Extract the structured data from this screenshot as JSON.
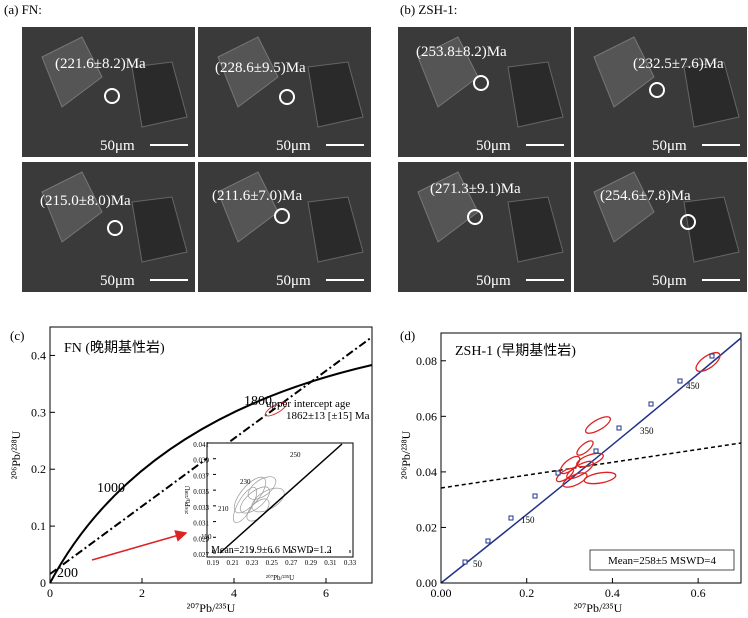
{
  "panel_a": {
    "label": "(a) FN:",
    "images": [
      {
        "age": "(221.6±8.2)Ma",
        "scale": "50μm"
      },
      {
        "age": "(228.6±9.5)Ma",
        "scale": "50μm"
      },
      {
        "age": "(215.0±8.0)Ma",
        "scale": "50μm"
      },
      {
        "age": "(211.6±7.0)Ma",
        "scale": "50μm"
      }
    ]
  },
  "panel_b": {
    "label": "(b) ZSH-1:",
    "images": [
      {
        "age": "(253.8±8.2)Ma",
        "scale": "50μm"
      },
      {
        "age": "(232.5±7.6)Ma",
        "scale": "50μm"
      },
      {
        "age": "(271.3±9.1)Ma",
        "scale": "50μm"
      },
      {
        "age": "(254.6±7.8)Ma",
        "scale": "50μm"
      }
    ]
  },
  "panel_c": {
    "label": "(c)",
    "title": "FN (晚期基性岩)",
    "xlabel": "²⁰⁷Pb/²³⁵U",
    "ylabel": "²⁰⁶Pb/²³⁸U",
    "xlim": [
      0,
      7
    ],
    "xticks": [
      0,
      2,
      4,
      6
    ],
    "ylim": [
      0,
      0.45
    ],
    "yticks": [
      0,
      0.1,
      0.2,
      0.3,
      0.4
    ],
    "curve_labels": [
      "1000",
      "1800",
      "200"
    ],
    "annotation": "upper intercept age",
    "annotation_age": "1862±13 [±15] Ma",
    "inset": {
      "xlabel": "²⁰⁷Pb/²³⁵U",
      "ylabel": "²⁰⁶Pb/²³⁸U",
      "xlim": [
        0.19,
        0.33
      ],
      "xticks": [
        0.19,
        0.21,
        0.23,
        0.25,
        0.27,
        0.29,
        0.31,
        0.33
      ],
      "ylim": [
        0.027,
        0.041
      ],
      "yticks": [
        0.027,
        0.029,
        0.031,
        0.033,
        0.035,
        0.037,
        0.039,
        0.041
      ],
      "curve_labels": [
        "250",
        "230",
        "210",
        "190"
      ],
      "stats": "Mean=219.9±6.6 MSWD=1.2"
    }
  },
  "panel_d": {
    "label": "(d)",
    "title": "ZSH-1 (早期基性岩)",
    "xlabel": "²⁰⁷Pb/²³⁵U",
    "ylabel": "²⁰⁶Pb/²³⁸U",
    "xlim": [
      0,
      0.7
    ],
    "xticks": [
      {
        "value": 0,
        "label": "0.00"
      },
      0.2,
      0.4,
      0.6
    ],
    "ylim": [
      0,
      0.09
    ],
    "yticks": [
      {
        "value": 0,
        "label": "0.00"
      },
      0.02,
      0.04,
      0.06,
      0.08
    ],
    "curve_labels": [
      "50",
      "150",
      "350",
      "450"
    ],
    "stats": "Mean=258±5 MSWD=4"
  }
}
